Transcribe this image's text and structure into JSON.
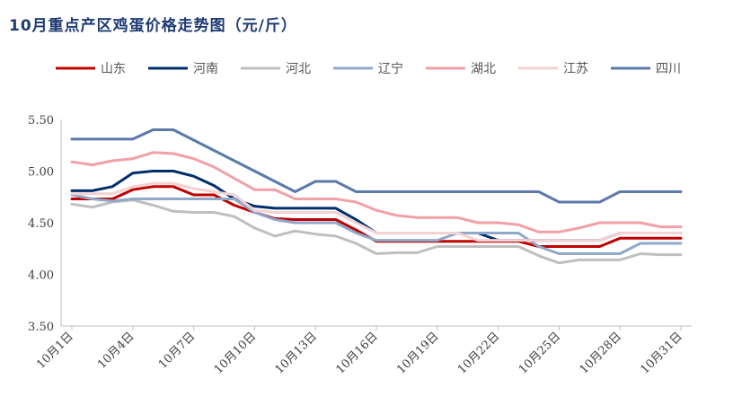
{
  "chart_data": {
    "type": "line",
    "title": "10月重点产区鸡蛋价格走势图（元/斤）",
    "xlabel": "",
    "ylabel": "",
    "ylim": [
      3.5,
      5.5
    ],
    "yticks": [
      "3.50",
      "4.00",
      "4.50",
      "5.00",
      "5.50"
    ],
    "x": [
      1,
      2,
      3,
      4,
      5,
      6,
      7,
      8,
      9,
      10,
      11,
      12,
      13,
      14,
      15,
      16,
      17,
      18,
      19,
      20,
      21,
      22,
      23,
      24,
      25,
      26,
      27,
      28,
      29,
      30,
      31
    ],
    "xtick_labels": [
      "10月1日",
      "10月4日",
      "10月7日",
      "10月10日",
      "10月13日",
      "10月16日",
      "10月19日",
      "10月22日",
      "10月25日",
      "10月28日",
      "10月31日"
    ],
    "grid": false,
    "legend_position": "top",
    "series": [
      {
        "name": "山东",
        "color": "#c00000",
        "values": [
          4.73,
          4.73,
          4.73,
          4.82,
          4.85,
          4.85,
          4.77,
          4.77,
          4.67,
          4.6,
          4.54,
          4.53,
          4.53,
          4.53,
          4.43,
          4.32,
          4.32,
          4.32,
          4.32,
          4.32,
          4.32,
          4.32,
          4.32,
          4.27,
          4.27,
          4.27,
          4.27,
          4.35,
          4.35,
          4.35,
          4.35
        ]
      },
      {
        "name": "河南",
        "color": "#002f6c",
        "values": [
          4.81,
          4.81,
          4.85,
          4.98,
          5.0,
          5.0,
          4.95,
          4.86,
          4.73,
          4.66,
          4.64,
          4.64,
          4.64,
          4.64,
          4.53,
          4.4,
          4.4,
          4.4,
          4.4,
          4.4,
          4.4,
          4.33,
          4.33,
          4.33,
          4.33,
          4.33,
          4.33,
          4.4,
          4.4,
          4.4,
          4.4
        ]
      },
      {
        "name": "河北",
        "color": "#bfbfbf",
        "values": [
          4.68,
          4.65,
          4.7,
          4.72,
          4.67,
          4.61,
          4.6,
          4.6,
          4.56,
          4.45,
          4.37,
          4.42,
          4.39,
          4.37,
          4.3,
          4.2,
          4.21,
          4.21,
          4.27,
          4.27,
          4.27,
          4.27,
          4.27,
          4.18,
          4.11,
          4.14,
          4.14,
          4.14,
          4.2,
          4.19,
          4.19
        ]
      },
      {
        "name": "辽宁",
        "color": "#8ea9c9",
        "values": [
          4.77,
          4.73,
          4.71,
          4.73,
          4.73,
          4.73,
          4.73,
          4.73,
          4.73,
          4.6,
          4.53,
          4.5,
          4.5,
          4.5,
          4.4,
          4.33,
          4.33,
          4.33,
          4.33,
          4.4,
          4.4,
          4.4,
          4.4,
          4.27,
          4.2,
          4.2,
          4.2,
          4.2,
          4.3,
          4.3,
          4.3
        ]
      },
      {
        "name": "湖北",
        "color": "#f2a0a8",
        "values": [
          5.09,
          5.06,
          5.1,
          5.12,
          5.18,
          5.17,
          5.12,
          5.04,
          4.93,
          4.82,
          4.82,
          4.73,
          4.73,
          4.73,
          4.7,
          4.62,
          4.57,
          4.55,
          4.55,
          4.55,
          4.5,
          4.5,
          4.48,
          4.41,
          4.41,
          4.45,
          4.5,
          4.5,
          4.5,
          4.46,
          4.46
        ]
      },
      {
        "name": "江苏",
        "color": "#f2d2d2",
        "values": [
          4.78,
          4.78,
          4.78,
          4.85,
          4.88,
          4.88,
          4.83,
          4.8,
          4.77,
          4.62,
          4.6,
          4.6,
          4.6,
          4.6,
          4.5,
          4.4,
          4.4,
          4.4,
          4.4,
          4.4,
          4.33,
          4.33,
          4.33,
          4.33,
          4.33,
          4.33,
          4.33,
          4.4,
          4.4,
          4.4,
          4.4
        ]
      },
      {
        "name": "四川",
        "color": "#5b79aa",
        "values": [
          5.31,
          5.31,
          5.31,
          5.31,
          5.4,
          5.4,
          5.3,
          5.2,
          5.1,
          5.0,
          4.9,
          4.8,
          4.9,
          4.9,
          4.8,
          4.8,
          4.8,
          4.8,
          4.8,
          4.8,
          4.8,
          4.8,
          4.8,
          4.8,
          4.7,
          4.7,
          4.7,
          4.8,
          4.8,
          4.8,
          4.8
        ]
      }
    ]
  }
}
